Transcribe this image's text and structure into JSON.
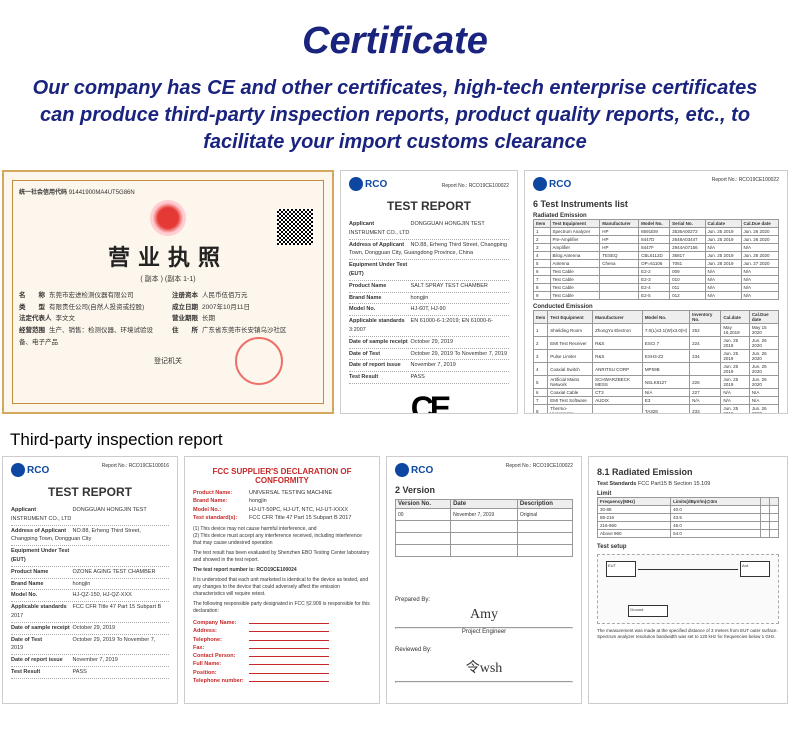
{
  "header": {
    "title": "Certificate",
    "subtitle": "Our company has CE and other certificates, high-tech enterprise certificates can produce third-party inspection reports, product quality reports, etc., to facilitate your import customs clearance"
  },
  "license": {
    "code_label": "统一社会信用代码",
    "code": "91441900MA4UT5G86N",
    "title": "营业执照",
    "subtitle": "( 副本 )     (副本 1-1)",
    "fields_left": [
      {
        "k": "名　　称",
        "v": "东莞市宏进检测仪器有限公司"
      },
      {
        "k": "类　　型",
        "v": "有限责任公司(自然人投资或控股)"
      },
      {
        "k": "法定代表人",
        "v": "李文文"
      },
      {
        "k": "经营范围",
        "v": "生产、销售：检测仪器、环境试验设备、电子产品"
      }
    ],
    "fields_right": [
      {
        "k": "注册资本",
        "v": "人民币伍佰万元"
      },
      {
        "k": "成立日期",
        "v": "2007年10月11日"
      },
      {
        "k": "营业期限",
        "v": "长期"
      },
      {
        "k": "住　　所",
        "v": "广东省东莞市长安镇乌沙社区"
      }
    ],
    "authority": "登记机关"
  },
  "test_report_1": {
    "logo": "RCO",
    "header_right": "Report No.: RCO19CE100022",
    "title": "TEST REPORT",
    "fields": [
      {
        "k": "Applicant",
        "v": "DONGGUAN HONGJIN TEST INSTRUMENT CO., LTD"
      },
      {
        "k": "Address of Applicant",
        "v": "NO.88, Erheng Third Street, Changping Town, Dongguan City, Guangdong Province, China"
      },
      {
        "k": "Equipment Under Test (EUT)",
        "v": ""
      },
      {
        "k": "Product Name",
        "v": "SALT SPRAY TEST CHAMBER"
      },
      {
        "k": "Brand Name",
        "v": "hongjin"
      },
      {
        "k": "Model No.",
        "v": "HJ-60T, HJ-90"
      },
      {
        "k": "Applicable standards",
        "v": "EN 61000-6-1:2019; EN 61000-6-3:2007"
      },
      {
        "k": "Date of sample receipt",
        "v": "October 29, 2019"
      },
      {
        "k": "Date of Test",
        "v": "October 29, 2019 To November 7, 2019"
      },
      {
        "k": "Date of report issue",
        "v": "November 7, 2019"
      },
      {
        "k": "Test Result",
        "v": "PASS"
      }
    ],
    "ce": "CE"
  },
  "instruments": {
    "logo": "RCO",
    "header_right": "Report No.: RCO19CE100022",
    "t1_title": "6  Test Instruments list",
    "t1_sub": "Radiated Emission",
    "t1_cols": [
      "Item",
      "Test Equipment",
      "Manufacturer",
      "Model No.",
      "Serial No.",
      "Cal.date",
      "Cal.Due date"
    ],
    "t1_rows": [
      [
        "1",
        "Spectrum Analyzer",
        "HP",
        "8591EM",
        "3536A00272",
        "Jun. 25 2019",
        "Jun. 26 2020"
      ],
      [
        "2",
        "Pre-Amplifier",
        "HP",
        "8447D",
        "2648A03447",
        "Jun. 25 2019",
        "Jun. 26 2020"
      ],
      [
        "3",
        "Amplifier",
        "HP",
        "8447F",
        "2944A07156",
        "N/A",
        "N/A"
      ],
      [
        "4",
        "Bilog Antenna",
        "TESEQ",
        "CBL6112D",
        "36817",
        "Jun. 25 2019",
        "Jun. 26 2020"
      ],
      [
        "5",
        "Antenna",
        "Chena",
        "OP=61106",
        "7061",
        "Jun. 28 2019",
        "Jun. 27 2020"
      ],
      [
        "6",
        "Test Cable",
        "",
        "E2-2",
        "009",
        "N/A",
        "N/A"
      ],
      [
        "7",
        "Test Cable",
        "",
        "E2-3",
        "010",
        "N/A",
        "N/A"
      ],
      [
        "8",
        "Test Cable",
        "",
        "E2-4",
        "011",
        "N/A",
        "N/A"
      ],
      [
        "9",
        "Test Cable",
        "",
        "E2-5",
        "012",
        "N/A",
        "N/A"
      ]
    ],
    "t2_sub": "Conducted Emission",
    "t2_cols": [
      "Item",
      "Test Equipment",
      "Manufacturer",
      "Model No.",
      "Inventory No.",
      "Cal.date",
      "Cal.Due date"
    ],
    "t2_rows": [
      [
        "1",
        "Shielding Room",
        "ZhongYu Electron",
        "7.0(L)x3.1(W)x3.0(H)",
        "252",
        "May 16,2019",
        "May 15 2020"
      ],
      [
        "2",
        "EMI Test Receiver",
        "R&S",
        "ESCI 7",
        "224",
        "Jun. 25 2019",
        "Jun. 26 2020"
      ],
      [
        "3",
        "Pulse Limiter",
        "R&S",
        "ESH3-Z2",
        "234",
        "Jun. 25 2019",
        "Jun. 26 2020"
      ],
      [
        "4",
        "Coaxial Switch",
        "ANRITSU CORP",
        "MP59B",
        "",
        "Jun. 25 2019",
        "Jun. 26 2020"
      ],
      [
        "5",
        "Artificial Mains Network",
        "SCHWARZBECK MESS",
        "NSLK8127",
        "226",
        "Jun. 25 2019",
        "Jun. 26 2020"
      ],
      [
        "6",
        "Coaxial Cable",
        "CT3",
        "N/A",
        "227",
        "N/A",
        "N/A"
      ],
      [
        "7",
        "EMI Test Software",
        "AUDIX",
        "E3",
        "N/A",
        "N/A",
        "N/A"
      ],
      [
        "8",
        "Thermo-Hygrometer",
        "",
        "TA328",
        "233",
        "Jun. 25 2019",
        "Jun. 26 2020"
      ],
      [
        "9",
        "",
        "KTJ",
        "TA328",
        "233",
        "Jun. 25 2019",
        "Jun. 26 2020"
      ]
    ]
  },
  "section2_label": "Third-party inspection report",
  "test_report_2": {
    "logo": "RCO",
    "header_right": "Report No.: RCO19CE100016",
    "title": "TEST REPORT",
    "fields": [
      {
        "k": "Applicant",
        "v": "DONGGUAN HONGJIN TEST INSTRUMENT CO., LTD"
      },
      {
        "k": "Address of Applicant",
        "v": "NO.88, Erheng Third Street, Changping Town, Dongguan City"
      },
      {
        "k": "Equipment Under Test (EUT)",
        "v": ""
      },
      {
        "k": "Product Name",
        "v": "OZONE AGING TEST CHAMBER"
      },
      {
        "k": "Brand Name",
        "v": "hongjin"
      },
      {
        "k": "Model No.",
        "v": "HJ-QZ-150, HJ-QZ-XXX"
      },
      {
        "k": "Applicable standards",
        "v": "FCC CFR Title 47 Part 15 Subpart B 2017"
      },
      {
        "k": "Date of sample receipt",
        "v": "October 29, 2019"
      },
      {
        "k": "Date of Test",
        "v": "October 29, 2019 To November 7, 2019"
      },
      {
        "k": "Date of report issue",
        "v": "November 7, 2019"
      },
      {
        "k": "Test Result",
        "v": "PASS"
      }
    ]
  },
  "fcc": {
    "title": "FCC SUPPLIER'S DECLARATION OF CONFORMITY",
    "fields": [
      {
        "k": "Product Name:",
        "v": "UNIVERSAL TESTING MACHINE"
      },
      {
        "k": "Brand Name:",
        "v": "hongjin"
      },
      {
        "k": "Model No.:",
        "v": "HJ-UT-50PC, HJ-UT, NTC, HJ-UT-XXXX"
      },
      {
        "k": "Test standard(s):",
        "v": "FCC CFR Title 47 Part 15 Subpart B 2017"
      }
    ],
    "body1": "(1) This device may not cause harmful interference, and",
    "body2": "(2) This device must accept any interference received, including interference that may cause undesired operation",
    "body3": "The test result has been evaluated by Shenzhen EBO Testing Center laboratory and showed in the test report.",
    "body4": "The test report number is: RCO19CE100024",
    "body5": "It is understood that each unit marketed is identical to the device as tested, and any changes to the device that could adversely affect the emission characteristics will require retest.",
    "body6": "The following responsible party designated in FCC §2.909 is responsible for this declaration:",
    "party_fields": [
      "Company Name:",
      "Address:",
      "Telephone:",
      "Fax:",
      "Contact Person:",
      "Full Name:",
      "Position:",
      "Telephone number:"
    ]
  },
  "version": {
    "logo": "RCO",
    "header_right": "Report No.: RCO19CE100022",
    "title": "2  Version",
    "cols": [
      "Version No.",
      "Date",
      "Description"
    ],
    "rows": [
      [
        "00",
        "November 7, 2019",
        "Original"
      ]
    ],
    "sig_labels": [
      "Prepared By:",
      "Project Engineer",
      "Reviewed By:"
    ],
    "sig1": "Amy",
    "sig2": "令wsh"
  },
  "emission": {
    "title": "8.1  Radiated Emission",
    "std_label": "Test Standards",
    "std_val": "FCC Part15 B Section 15.109",
    "sub": "Limit",
    "tcols": [
      "Frequency(MHz)",
      "Limits(dBµV/m)@3m",
      "",
      ""
    ],
    "trows": [
      [
        "30-88",
        "40.0",
        "",
        ""
      ],
      [
        "88-216",
        "43.5",
        "",
        ""
      ],
      [
        "216-960",
        "46.0",
        "",
        ""
      ],
      [
        "Above 960",
        "54.0",
        "",
        ""
      ]
    ],
    "setup_label": "Test setup"
  }
}
